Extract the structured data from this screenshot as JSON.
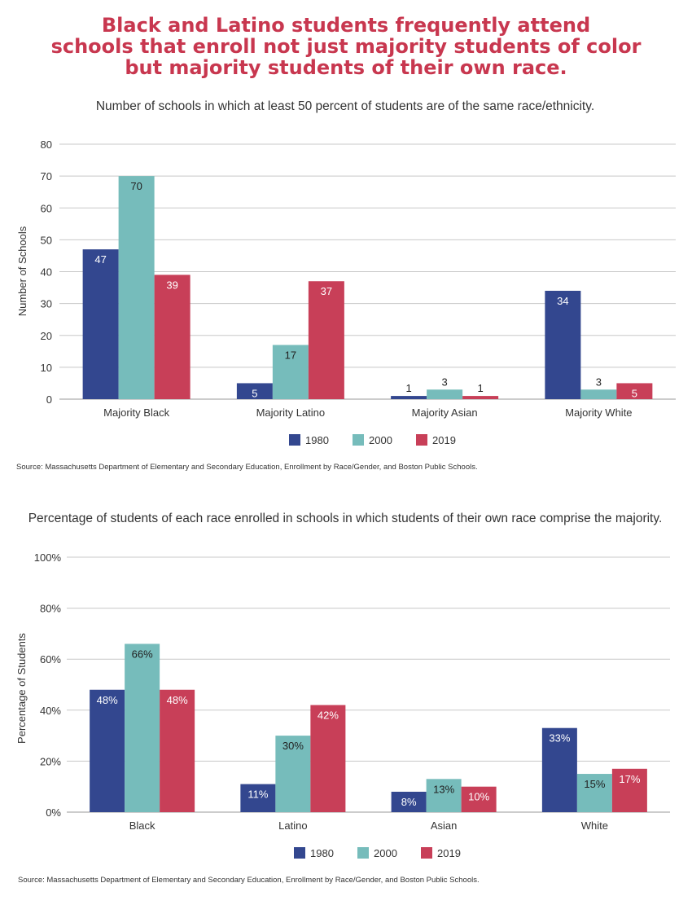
{
  "title_lines": [
    "Black and Latino students frequently attend",
    "schools that enroll not just majority students of color",
    "but majority students of their own race."
  ],
  "colors": {
    "title": "#c8374f",
    "1980": "#33478f",
    "2000": "#76bcbb",
    "2019": "#c83f58"
  },
  "chart_data": [
    {
      "type": "bar",
      "title": "Number of schools in which at least 50 percent of students are of the same race/ethnicity.",
      "xlabel": "",
      "ylabel": "Number of Schools",
      "ylim": [
        0,
        80
      ],
      "yticks": [
        "0",
        "10",
        "20",
        "30",
        "40",
        "50",
        "60",
        "70",
        "80"
      ],
      "grid": true,
      "legend": "bottom",
      "categories": [
        "Majority Black",
        "Majority Latino",
        "Majority Asian",
        "Majority White"
      ],
      "series": [
        {
          "name": "1980",
          "values": [
            47,
            5,
            1,
            34
          ],
          "labels": [
            "47",
            "5",
            "1",
            "34"
          ]
        },
        {
          "name": "2000",
          "values": [
            70,
            17,
            3,
            3
          ],
          "labels": [
            "70",
            "17",
            "3",
            "3"
          ]
        },
        {
          "name": "2019",
          "values": [
            39,
            37,
            1,
            5
          ],
          "labels": [
            "39",
            "37",
            "1",
            "5"
          ]
        }
      ],
      "source": "Source: Massachusetts Department of Elementary and Secondary Education, Enrollment by Race/Gender, and Boston Public Schools."
    },
    {
      "type": "bar",
      "title": "Percentage of students of each race enrolled in schools in which students of their own race comprise the majority.",
      "xlabel": "",
      "ylabel": "Percentage of Students",
      "ylim": [
        0,
        100
      ],
      "yticks": [
        "0%",
        "20%",
        "40%",
        "60%",
        "80%",
        "100%"
      ],
      "grid": true,
      "legend": "bottom",
      "categories": [
        "Black",
        "Latino",
        "Asian",
        "White"
      ],
      "series": [
        {
          "name": "1980",
          "values": [
            48,
            11,
            8,
            33
          ],
          "labels": [
            "48%",
            "11%",
            "8%",
            "33%"
          ]
        },
        {
          "name": "2000",
          "values": [
            66,
            30,
            13,
            15
          ],
          "labels": [
            "66%",
            "30%",
            "13%",
            "15%"
          ]
        },
        {
          "name": "2019",
          "values": [
            48,
            42,
            10,
            17
          ],
          "labels": [
            "48%",
            "42%",
            "10%",
            "17%"
          ]
        }
      ],
      "source": "Source: Massachusetts Department of Elementary and Secondary Education, Enrollment by Race/Gender, and Boston Public Schools."
    }
  ]
}
